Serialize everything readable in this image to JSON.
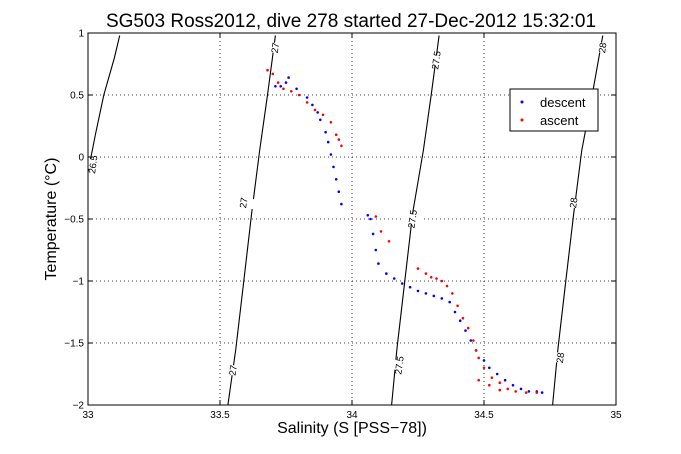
{
  "chart_data": {
    "type": "scatter",
    "title": "SG503 Ross2012, dive 278 started 27-Dec-2012 15:32:01",
    "xlabel": "Salinity (S [PSS−78])",
    "ylabel": "Temperature (°C)",
    "xlim": [
      33,
      35
    ],
    "ylim": [
      -2,
      1
    ],
    "xticks": [
      33,
      33.5,
      34,
      34.5,
      35
    ],
    "xtick_labels": [
      "33",
      "33.5",
      "34",
      "34.5",
      "35"
    ],
    "yticks": [
      -2,
      -1.5,
      -1,
      -0.5,
      0,
      0.5,
      1
    ],
    "ytick_labels": [
      "−2",
      "−1.5",
      "−1",
      "−0.5",
      "0",
      "0.5",
      "1"
    ],
    "grid": true,
    "legend": {
      "location": "top-right"
    },
    "series": [
      {
        "name": "descent",
        "color": "#0000ff",
        "points": [
          [
            33.71,
            0.57
          ],
          [
            33.73,
            0.57
          ],
          [
            33.75,
            0.6
          ],
          [
            33.76,
            0.64
          ],
          [
            33.79,
            0.55
          ],
          [
            33.83,
            0.48
          ],
          [
            33.85,
            0.42
          ],
          [
            33.87,
            0.36
          ],
          [
            33.88,
            0.3
          ],
          [
            33.9,
            0.2
          ],
          [
            33.91,
            0.12
          ],
          [
            33.92,
            0.02
          ],
          [
            33.93,
            -0.08
          ],
          [
            33.94,
            -0.18
          ],
          [
            33.95,
            -0.28
          ],
          [
            33.96,
            -0.38
          ],
          [
            34.06,
            -0.47
          ],
          [
            34.07,
            -0.5
          ],
          [
            34.08,
            -0.62
          ],
          [
            34.09,
            -0.75
          ],
          [
            34.1,
            -0.86
          ],
          [
            34.13,
            -0.94
          ],
          [
            34.16,
            -0.98
          ],
          [
            34.19,
            -1.02
          ],
          [
            34.22,
            -1.05
          ],
          [
            34.25,
            -1.08
          ],
          [
            34.28,
            -1.1
          ],
          [
            34.31,
            -1.12
          ],
          [
            34.34,
            -1.14
          ],
          [
            34.37,
            -1.17
          ],
          [
            34.39,
            -1.25
          ],
          [
            34.41,
            -1.32
          ],
          [
            34.43,
            -1.4
          ],
          [
            34.45,
            -1.48
          ],
          [
            34.47,
            -1.56
          ],
          [
            34.5,
            -1.64
          ],
          [
            34.52,
            -1.7
          ],
          [
            34.55,
            -1.75
          ],
          [
            34.58,
            -1.8
          ],
          [
            34.61,
            -1.84
          ],
          [
            34.64,
            -1.87
          ],
          [
            34.67,
            -1.89
          ],
          [
            34.7,
            -1.89
          ],
          [
            34.72,
            -1.9
          ]
        ]
      },
      {
        "name": "ascent",
        "color": "#ff0000",
        "points": [
          [
            33.68,
            0.7
          ],
          [
            33.7,
            0.67
          ],
          [
            33.72,
            0.6
          ],
          [
            33.74,
            0.55
          ],
          [
            33.77,
            0.53
          ],
          [
            33.8,
            0.5
          ],
          [
            33.83,
            0.44
          ],
          [
            33.86,
            0.38
          ],
          [
            33.89,
            0.34
          ],
          [
            33.92,
            0.28
          ],
          [
            33.94,
            0.18
          ],
          [
            33.95,
            0.14
          ],
          [
            33.96,
            0.09
          ],
          [
            34.09,
            -0.48
          ],
          [
            34.11,
            -0.6
          ],
          [
            34.14,
            -0.68
          ],
          [
            34.25,
            -0.9
          ],
          [
            34.28,
            -0.94
          ],
          [
            34.3,
            -0.97
          ],
          [
            34.32,
            -0.98
          ],
          [
            34.34,
            -1.0
          ],
          [
            34.36,
            -1.04
          ],
          [
            34.38,
            -1.1
          ],
          [
            34.4,
            -1.2
          ],
          [
            34.42,
            -1.3
          ],
          [
            34.44,
            -1.38
          ],
          [
            34.46,
            -1.48
          ],
          [
            34.47,
            -1.56
          ],
          [
            34.48,
            -1.62
          ],
          [
            34.5,
            -1.7
          ],
          [
            34.53,
            -1.78
          ],
          [
            34.56,
            -1.82
          ],
          [
            34.59,
            -1.87
          ],
          [
            34.62,
            -1.89
          ],
          [
            34.66,
            -1.9
          ],
          [
            34.7,
            -1.9
          ],
          [
            34.48,
            -1.8
          ],
          [
            34.52,
            -1.84
          ],
          [
            34.56,
            -1.88
          ]
        ]
      }
    ],
    "density_contours": [
      {
        "label": "26.5",
        "label_positions": [
          [
            33.02,
            -0.06
          ]
        ],
        "points": [
          [
            33.0,
            -0.12
          ],
          [
            33.03,
            0.2
          ],
          [
            33.06,
            0.5
          ],
          [
            33.1,
            0.8
          ],
          [
            33.12,
            0.98
          ]
        ]
      },
      {
        "label": "27",
        "label_positions": [
          [
            33.55,
            -1.72
          ],
          [
            33.59,
            -0.37
          ],
          [
            33.71,
            0.88
          ]
        ],
        "points": [
          [
            33.53,
            -2.0
          ],
          [
            33.56,
            -1.55
          ],
          [
            33.59,
            -1.0
          ],
          [
            33.62,
            -0.45
          ],
          [
            33.65,
            0.05
          ],
          [
            33.68,
            0.5
          ],
          [
            33.71,
            0.98
          ]
        ]
      },
      {
        "label": "27.5",
        "label_positions": [
          [
            34.18,
            -1.68
          ],
          [
            34.23,
            -0.5
          ],
          [
            34.32,
            0.78
          ]
        ],
        "points": [
          [
            34.15,
            -2.0
          ],
          [
            34.17,
            -1.55
          ],
          [
            34.2,
            -1.0
          ],
          [
            34.23,
            -0.45
          ],
          [
            34.27,
            0.05
          ],
          [
            34.3,
            0.5
          ],
          [
            34.33,
            0.98
          ]
        ]
      },
      {
        "label": "28",
        "label_positions": [
          [
            34.79,
            -1.62
          ],
          [
            34.84,
            -0.37
          ],
          [
            34.95,
            0.88
          ]
        ],
        "points": [
          [
            34.76,
            -2.0
          ],
          [
            34.78,
            -1.55
          ],
          [
            34.81,
            -1.0
          ],
          [
            34.84,
            -0.45
          ],
          [
            34.87,
            0.05
          ],
          [
            34.91,
            0.5
          ],
          [
            34.95,
            0.98
          ]
        ]
      }
    ]
  }
}
